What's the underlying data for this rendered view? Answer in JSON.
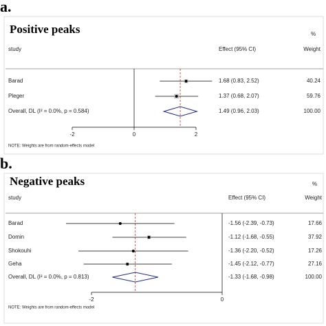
{
  "chart_data": [
    {
      "type": "forest",
      "label": "a.",
      "title": "Positive peaks",
      "study_header": "study",
      "effect_header": "Effect (95% CI)",
      "weight_header_top": "%",
      "weight_header": "Weight",
      "categories": [
        "Barad",
        "Pleger"
      ],
      "values": [
        1.68,
        1.37
      ],
      "lower": [
        0.83,
        0.68
      ],
      "upper": [
        2.52,
        2.07
      ],
      "value_labels": [
        "1.68 (0.83, 2.52)",
        "1.37 (0.68, 2.07)"
      ],
      "weights": [
        40.24,
        59.76
      ],
      "overall": {
        "name": "Overall, DL (I² = 0.0%, p = 0.584)",
        "value": 1.49,
        "lower": 0.96,
        "upper": 2.03,
        "value_label": "1.49 (0.96, 2.03)",
        "weight": {
          "value": 100,
          "label": "100.00"
        }
      },
      "note": "NOTE: Weights are from random-effects model",
      "xlim": [
        -2,
        2
      ],
      "xticks": [
        -2,
        0,
        2
      ]
    },
    {
      "type": "forest",
      "label": "b.",
      "title": "Negative peaks",
      "study_header": "study",
      "effect_header": "Effect (95% CI)",
      "weight_header_top": "%",
      "weight_header": "Weight",
      "categories": [
        "Barad",
        "Domin",
        "Shokouhi",
        "Geha"
      ],
      "values": [
        -1.56,
        -1.12,
        -1.36,
        -1.45
      ],
      "lower": [
        -2.39,
        -1.68,
        -2.2,
        -2.12
      ],
      "upper": [
        -0.73,
        -0.55,
        -0.52,
        -0.77
      ],
      "value_labels": [
        "-1.56 (-2.39, -0.73)",
        "-1.12 (-1.68, -0.55)",
        "-1.36 (-2.20, -0.52)",
        "-1.45 (-2.12, -0.77)"
      ],
      "weights": [
        17.66,
        37.92,
        17.26,
        27.16
      ],
      "overall": {
        "name": "Overall, DL (I² = 0.0%, p = 0.813)",
        "value": -1.33,
        "lower": -1.68,
        "upper": -0.98,
        "value_label": "-1.33 (-1.68, -0.98)",
        "weight": {
          "value": 100,
          "label": "100.00"
        }
      },
      "note": "NOTE: Weights are from random-effects model",
      "xlim": [
        -2,
        0
      ],
      "xticks": [
        -2,
        0
      ]
    }
  ]
}
